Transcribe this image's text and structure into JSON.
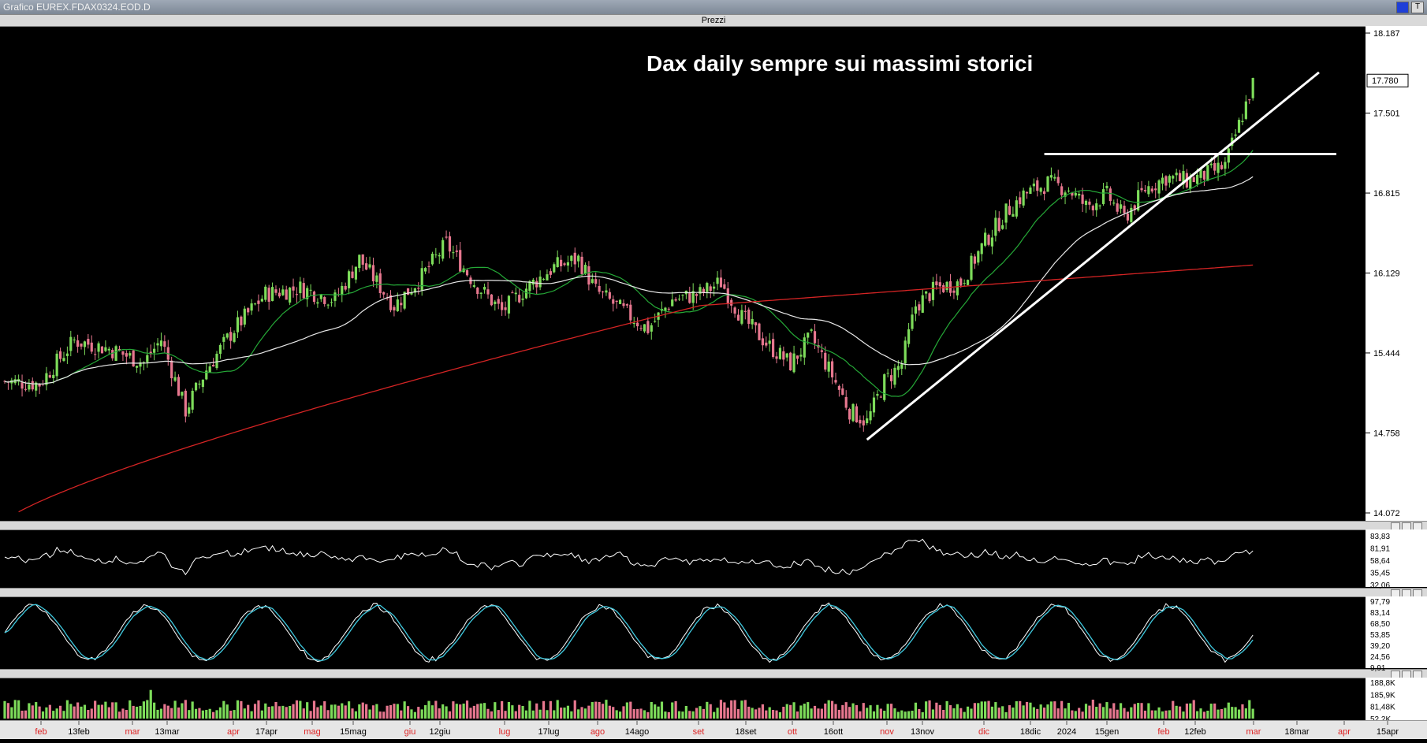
{
  "window": {
    "title": "Grafico EUREX.FDAX0324.EOD.D",
    "right_label": "T"
  },
  "panels": {
    "price_label": "Prezzi",
    "rsi_label": "",
    "stoch_label": "",
    "volume_label": ""
  },
  "colors": {
    "background": "#000000",
    "bull_candle": "#7ddc5a",
    "bear_candle": "#e7778f",
    "ma_fast": "#25a837",
    "ma_mid": "#e8e8e8",
    "ma_slow": "#d42424",
    "trendline": "#ffffff",
    "stoch_k": "#ffffff",
    "stoch_d": "#3fc9df"
  },
  "chart_data": {
    "type": "candlestick",
    "title": "Dax daily  sempre sui massimi storici",
    "y_axis": {
      "ticks": [
        "14.072",
        "14.758",
        "15.444",
        "16.129",
        "16.815",
        "17.501",
        "18.187"
      ],
      "last_price_label": "17.780",
      "ylim": [
        14072,
        18187
      ]
    },
    "x_axis": {
      "labels": [
        {
          "text": "feb",
          "month": true
        },
        {
          "text": "13feb",
          "month": false
        },
        {
          "text": "mar",
          "month": true
        },
        {
          "text": "13mar",
          "month": false
        },
        {
          "text": "apr",
          "month": true
        },
        {
          "text": "17apr",
          "month": false
        },
        {
          "text": "mag",
          "month": true
        },
        {
          "text": "15mag",
          "month": false
        },
        {
          "text": "giu",
          "month": true
        },
        {
          "text": "12giu",
          "month": false
        },
        {
          "text": "lug",
          "month": true
        },
        {
          "text": "17lug",
          "month": false
        },
        {
          "text": "ago",
          "month": true
        },
        {
          "text": "14ago",
          "month": false
        },
        {
          "text": "set",
          "month": true
        },
        {
          "text": "18set",
          "month": false
        },
        {
          "text": "ott",
          "month": true
        },
        {
          "text": "16ott",
          "month": false
        },
        {
          "text": "nov",
          "month": true
        },
        {
          "text": "13nov",
          "month": false
        },
        {
          "text": "dic",
          "month": true
        },
        {
          "text": "18dic",
          "month": false
        },
        {
          "text": "2024",
          "month": false
        },
        {
          "text": "15gen",
          "month": false
        },
        {
          "text": "feb",
          "month": true
        },
        {
          "text": "12feb",
          "month": false
        },
        {
          "text": "mar",
          "month": true
        },
        {
          "text": "18mar",
          "month": false
        },
        {
          "text": "apr",
          "month": true
        },
        {
          "text": "15apr",
          "month": false
        }
      ]
    },
    "price_path": [
      {
        "i": 0,
        "v": 15200
      },
      {
        "i": 10,
        "v": 15180
      },
      {
        "i": 20,
        "v": 15550
      },
      {
        "i": 30,
        "v": 15480
      },
      {
        "i": 40,
        "v": 15360
      },
      {
        "i": 45,
        "v": 15560
      },
      {
        "i": 52,
        "v": 14950
      },
      {
        "i": 58,
        "v": 15300
      },
      {
        "i": 66,
        "v": 15650
      },
      {
        "i": 75,
        "v": 15950
      },
      {
        "i": 85,
        "v": 16000
      },
      {
        "i": 95,
        "v": 15900
      },
      {
        "i": 102,
        "v": 16250
      },
      {
        "i": 112,
        "v": 15850
      },
      {
        "i": 120,
        "v": 16100
      },
      {
        "i": 127,
        "v": 16380
      },
      {
        "i": 135,
        "v": 16050
      },
      {
        "i": 143,
        "v": 15800
      },
      {
        "i": 150,
        "v": 16000
      },
      {
        "i": 158,
        "v": 16180
      },
      {
        "i": 165,
        "v": 16250
      },
      {
        "i": 170,
        "v": 15980
      },
      {
        "i": 178,
        "v": 15800
      },
      {
        "i": 185,
        "v": 15650
      },
      {
        "i": 192,
        "v": 15900
      },
      {
        "i": 200,
        "v": 15950
      },
      {
        "i": 206,
        "v": 16050
      },
      {
        "i": 212,
        "v": 15750
      },
      {
        "i": 220,
        "v": 15500
      },
      {
        "i": 226,
        "v": 15350
      },
      {
        "i": 232,
        "v": 15580
      },
      {
        "i": 238,
        "v": 15250
      },
      {
        "i": 243,
        "v": 14950
      },
      {
        "i": 248,
        "v": 14850
      },
      {
        "i": 253,
        "v": 15200
      },
      {
        "i": 258,
        "v": 15350
      },
      {
        "i": 262,
        "v": 15850
      },
      {
        "i": 268,
        "v": 16000
      },
      {
        "i": 275,
        "v": 16050
      },
      {
        "i": 282,
        "v": 16400
      },
      {
        "i": 288,
        "v": 16650
      },
      {
        "i": 293,
        "v": 16800
      },
      {
        "i": 300,
        "v": 16900
      },
      {
        "i": 306,
        "v": 16850
      },
      {
        "i": 311,
        "v": 16700
      },
      {
        "i": 317,
        "v": 16800
      },
      {
        "i": 322,
        "v": 16600
      },
      {
        "i": 328,
        "v": 16850
      },
      {
        "i": 334,
        "v": 16950
      },
      {
        "i": 340,
        "v": 16920
      },
      {
        "i": 346,
        "v": 16980
      },
      {
        "i": 351,
        "v": 17050
      },
      {
        "i": 355,
        "v": 17400
      },
      {
        "i": 359,
        "v": 17750
      }
    ],
    "n_candles": 360,
    "resistance_level": 17150,
    "trendline": {
      "from": {
        "i": 248,
        "v": 14700
      },
      "to": {
        "i": 378,
        "v": 17850
      }
    },
    "ma_fast_end": 16980,
    "ma_mid_end": 16890,
    "ma_slow": {
      "start": 14000,
      "mid": 15850,
      "end": 16200
    },
    "rsi": {
      "labels": [
        "83,83",
        "81,91",
        "58,64",
        "35,45",
        "32,06"
      ]
    },
    "stochastic": {
      "labels": [
        "97,79",
        "83,14",
        "68,50",
        "53,85",
        "39,20",
        "24,56",
        "9,91"
      ]
    },
    "volume": {
      "labels": [
        "188,8K",
        "185,9K",
        "81,48K",
        "52,2K"
      ]
    }
  }
}
